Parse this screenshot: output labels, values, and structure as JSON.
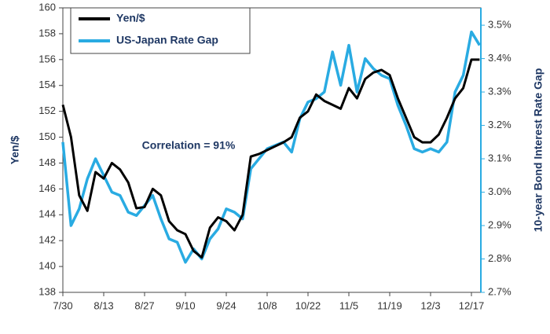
{
  "chart_data": {
    "type": "line",
    "annotation": "Correlation = 91%",
    "ylabel": "Yen/$",
    "y2label": "10-year Bond Interest Rate Gap",
    "categories": [
      "7/30",
      null,
      null,
      null,
      null,
      "8/13",
      null,
      null,
      null,
      null,
      "8/27",
      null,
      null,
      null,
      null,
      "9/10",
      null,
      null,
      null,
      null,
      "9/24",
      null,
      null,
      null,
      null,
      "10/8",
      null,
      null,
      null,
      null,
      "10/22",
      null,
      null,
      null,
      null,
      "11/5",
      null,
      null,
      null,
      null,
      "11/19",
      null,
      null,
      null,
      null,
      "12/3",
      null,
      null,
      null,
      null,
      "12/17",
      null
    ],
    "series": [
      {
        "name": "Yen/$",
        "color": "#000000",
        "values": [
          152.5,
          150.0,
          145.5,
          144.3,
          147.3,
          146.8,
          148.0,
          147.5,
          146.5,
          144.5,
          144.6,
          146.0,
          145.5,
          143.5,
          142.8,
          142.5,
          141.2,
          140.7,
          143.0,
          143.8,
          143.5,
          142.8,
          144.0,
          148.5,
          148.7,
          149.0,
          149.3,
          149.6,
          150.0,
          151.5,
          152.0,
          153.3,
          152.8,
          152.5,
          152.2,
          153.8,
          153.0,
          154.5,
          155.0,
          155.2,
          154.8,
          153.0,
          151.5,
          150.0,
          149.6,
          149.6,
          150.2,
          151.5,
          153.0,
          153.8,
          156.0,
          156.0
        ]
      },
      {
        "name": "US-Japan Rate Gap",
        "color": "#29abe2",
        "axis": "y2",
        "values": [
          3.15,
          2.9,
          2.95,
          3.04,
          3.1,
          3.05,
          3.0,
          2.99,
          2.94,
          2.93,
          2.96,
          2.99,
          2.92,
          2.86,
          2.85,
          2.79,
          2.83,
          2.8,
          2.86,
          2.89,
          2.95,
          2.94,
          2.92,
          3.07,
          3.1,
          3.13,
          3.14,
          3.15,
          3.12,
          3.22,
          3.27,
          3.28,
          3.3,
          3.42,
          3.32,
          3.44,
          3.3,
          3.4,
          3.37,
          3.35,
          3.34,
          3.26,
          3.2,
          3.13,
          3.12,
          3.13,
          3.12,
          3.15,
          3.3,
          3.35,
          3.48,
          3.44
        ]
      }
    ],
    "ylim": [
      138,
      160
    ],
    "yticks": [
      138,
      140,
      142,
      144,
      146,
      148,
      150,
      152,
      154,
      156,
      158,
      160
    ],
    "y2lim": [
      2.7,
      3.552
    ],
    "y2ticks": [
      {
        "value": 2.7,
        "label": "2.7%"
      },
      {
        "value": 2.8,
        "label": "2.8%"
      },
      {
        "value": 2.9,
        "label": "2.9%"
      },
      {
        "value": 3.0,
        "label": "3.0%"
      },
      {
        "value": 3.1,
        "label": "3.1%"
      },
      {
        "value": 3.2,
        "label": "3.2%"
      },
      {
        "value": 3.3,
        "label": "3.3%"
      },
      {
        "value": 3.4,
        "label": "3.4%"
      },
      {
        "value": 3.5,
        "label": "3.5%"
      }
    ],
    "legend": "upper left"
  }
}
